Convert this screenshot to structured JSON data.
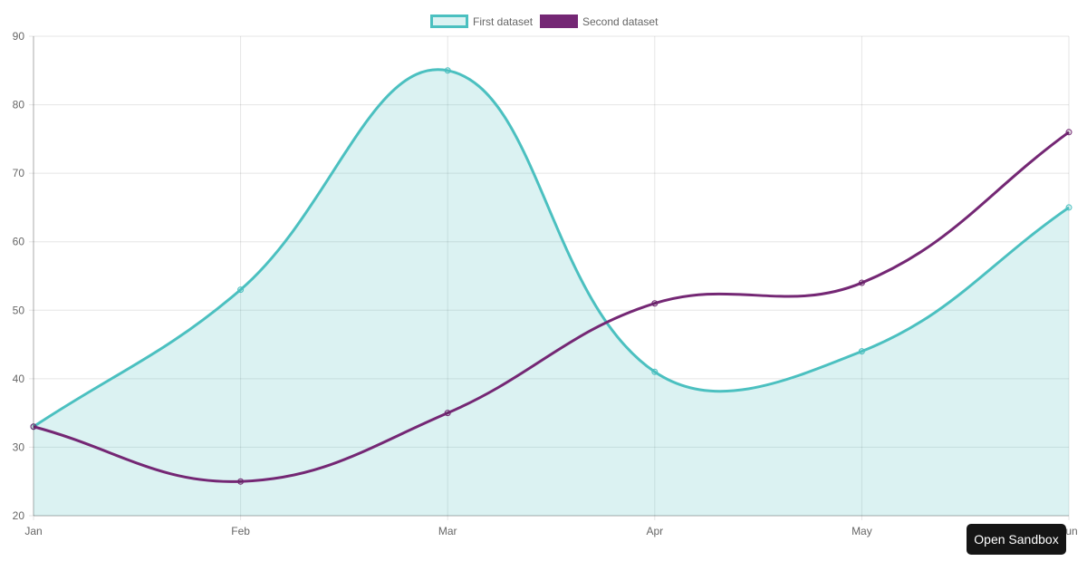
{
  "chart_data": {
    "type": "line",
    "categories": [
      "Jan",
      "Feb",
      "Mar",
      "Apr",
      "May",
      "Jun"
    ],
    "series": [
      {
        "name": "First dataset",
        "values": [
          33,
          53,
          85,
          41,
          44,
          65
        ],
        "color": "#4bc0c0",
        "fill": "rgba(75,192,192,0.2)",
        "filled": true
      },
      {
        "name": "Second dataset",
        "values": [
          33,
          25,
          35,
          51,
          54,
          76
        ],
        "color": "#742774",
        "filled": false
      }
    ],
    "ylim": [
      20,
      90
    ],
    "yticks": [
      20,
      30,
      40,
      50,
      60,
      70,
      80,
      90
    ],
    "grid": true,
    "legend": "top",
    "title": "",
    "xlabel": "",
    "ylabel": ""
  },
  "button": {
    "open_sandbox": "Open Sandbox"
  }
}
